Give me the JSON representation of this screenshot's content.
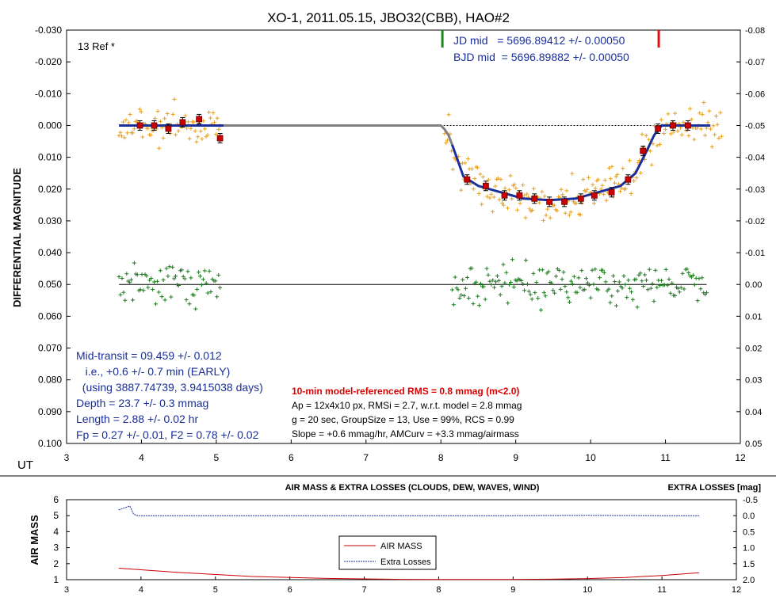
{
  "chart_data": [
    {
      "type": "scatter",
      "title": "XO-1, 2011.05.15, JBO32(CBB), HAO#2",
      "ylabel": "DIFFERENTIAL MAGNITUDE",
      "xlabel": "UT",
      "xlim": [
        3,
        12
      ],
      "ylim_left": [
        -0.03,
        0.1
      ],
      "ylim_right": [
        -0.08,
        0.05
      ],
      "y_reversed": true,
      "grid": false,
      "x_ticks": [
        "3",
        "4",
        "5",
        "6",
        "7",
        "8",
        "9",
        "10",
        "11",
        "12"
      ],
      "left_ticks": [
        "-0.030",
        "-0.020",
        "-0.010",
        "0.000",
        "0.010",
        "0.020",
        "0.030",
        "0.040",
        "0.050",
        "0.060",
        "0.070",
        "0.080",
        "0.090",
        "0.100"
      ],
      "right_ticks": [
        "-0.08",
        "-0.07",
        "-0.06",
        "-0.05",
        "-0.04",
        "-0.03",
        "-0.02",
        "-0.01",
        "0.00",
        "0.01",
        "0.02",
        "0.03",
        "0.04",
        "0.05"
      ],
      "marker_ingress_x": 8.02,
      "marker_egress_x": 10.91,
      "series": [
        {
          "role": "target-binned",
          "color": "#cc0000",
          "x": [
            3.98,
            4.17,
            4.36,
            4.55,
            4.77,
            5.05,
            8.35,
            8.6,
            8.85,
            9.05,
            9.25,
            9.45,
            9.65,
            9.87,
            10.05,
            10.28,
            10.5,
            10.7,
            10.9,
            11.1,
            11.3
          ],
          "y": [
            0.0,
            0.0,
            0.001,
            -0.001,
            -0.002,
            0.004,
            0.017,
            0.019,
            0.022,
            0.022,
            0.023,
            0.024,
            0.024,
            0.023,
            0.022,
            0.021,
            0.017,
            0.008,
            0.001,
            0.0,
            0.0
          ]
        },
        {
          "role": "model",
          "color": "#1a2f9a",
          "x": [
            3.7,
            5.1,
            7.95,
            8.05,
            8.15,
            8.3,
            8.5,
            8.8,
            9.1,
            9.45,
            9.8,
            10.1,
            10.4,
            10.6,
            10.75,
            10.85,
            10.95,
            11.6
          ],
          "y": [
            0.0,
            0.0,
            0.0,
            0.0,
            0.006,
            0.016,
            0.019,
            0.021,
            0.023,
            0.0235,
            0.023,
            0.021,
            0.019,
            0.015,
            0.008,
            0.003,
            0.0,
            0.0
          ]
        },
        {
          "role": "model-gap",
          "color": "#808080",
          "x": [
            5.1,
            7.95,
            8.0,
            8.05,
            8.1,
            8.15
          ],
          "y": [
            0.0,
            0.0,
            0.0,
            0.0012,
            0.003,
            0.006
          ]
        },
        {
          "role": "target-raw",
          "color": "#e8a020",
          "note_kind": "scatter-around-model",
          "segments": [
            [
              3.7,
              5.05
            ],
            [
              8.05,
              11.75
            ]
          ],
          "spread": 0.0045
        },
        {
          "role": "reference",
          "color": "#1f7a1f",
          "segments": [
            [
              3.7,
              5.05
            ],
            [
              8.15,
              11.55
            ]
          ],
          "center_right_axis": 0.0,
          "spread": 0.0045
        }
      ],
      "annotations": {
        "ref_count": "13 Ref *",
        "jd_mid": "JD mid   = 5696.89412 +/- 0.00050",
        "bjd_mid": "BJD mid  = 5696.89882 +/- 0.00050",
        "left_box": [
          "Mid-transit = 09.459 +/- 0.012",
          "   i.e., +0.6 +/- 0.7 min (EARLY)",
          "  (using 3887.74739, 3.9415038 days)",
          "Depth = 23.7 +/- 0.3 mmag",
          "Length = 2.88 +/- 0.02 hr",
          "Fp = 0.27 +/- 0.01, F2 = 0.78 +/- 0.02"
        ],
        "rms_line": "10-min model-referenced RMS = 0.8 mmag (m<2.0)",
        "stats": [
          "Ap = 12x4x10 px, RMSi = 2.7, w.r.t. model = 2.8 mmag",
          "g = 20 sec, GroupSize = 13, Use = 99%, RCS = 0.99",
          "Slope = +0.6 mmag/hr, AMCurv = +3.3 mmag/airmass"
        ]
      }
    },
    {
      "type": "line",
      "title": "AIR MASS & EXTRA LOSSES (CLOUDS, DEW, WAVES, WIND)",
      "ylabel": "AIR MASS",
      "y2label": "EXTRA LOSSES [mag]",
      "xlim": [
        3,
        12
      ],
      "ylim": [
        1,
        6
      ],
      "y2lim": [
        -0.5,
        2.0
      ],
      "x_ticks": [
        "3",
        "4",
        "5",
        "6",
        "7",
        "8",
        "9",
        "10",
        "11",
        "12"
      ],
      "left_ticks": [
        "1",
        "2",
        "3",
        "4",
        "5",
        "6"
      ],
      "right_ticks": [
        "-0.5",
        "0.0",
        "0.5",
        "1.0",
        "1.5",
        "2.0"
      ],
      "legend": [
        "AIR MASS",
        "Extra Losses"
      ],
      "series": [
        {
          "name": "AIR MASS",
          "color": "#cc0000",
          "x": [
            3.7,
            4.5,
            5.5,
            6.5,
            7.5,
            8.0,
            8.9,
            9.5,
            10.0,
            10.5,
            11.0,
            11.5
          ],
          "y": [
            1.72,
            1.45,
            1.2,
            1.08,
            1.02,
            1.01,
            1.01,
            1.03,
            1.07,
            1.14,
            1.26,
            1.43
          ]
        },
        {
          "name": "Extra Losses",
          "color": "#1a2f9a",
          "x": [
            3.7,
            3.85,
            3.9,
            3.95,
            5.05,
            8.15,
            9.0,
            10.0,
            11.0,
            11.5
          ],
          "y": [
            -0.18,
            -0.3,
            -0.05,
            0.0,
            0.0,
            0.0,
            0.0,
            -0.01,
            0.0,
            0.0
          ]
        }
      ]
    }
  ]
}
